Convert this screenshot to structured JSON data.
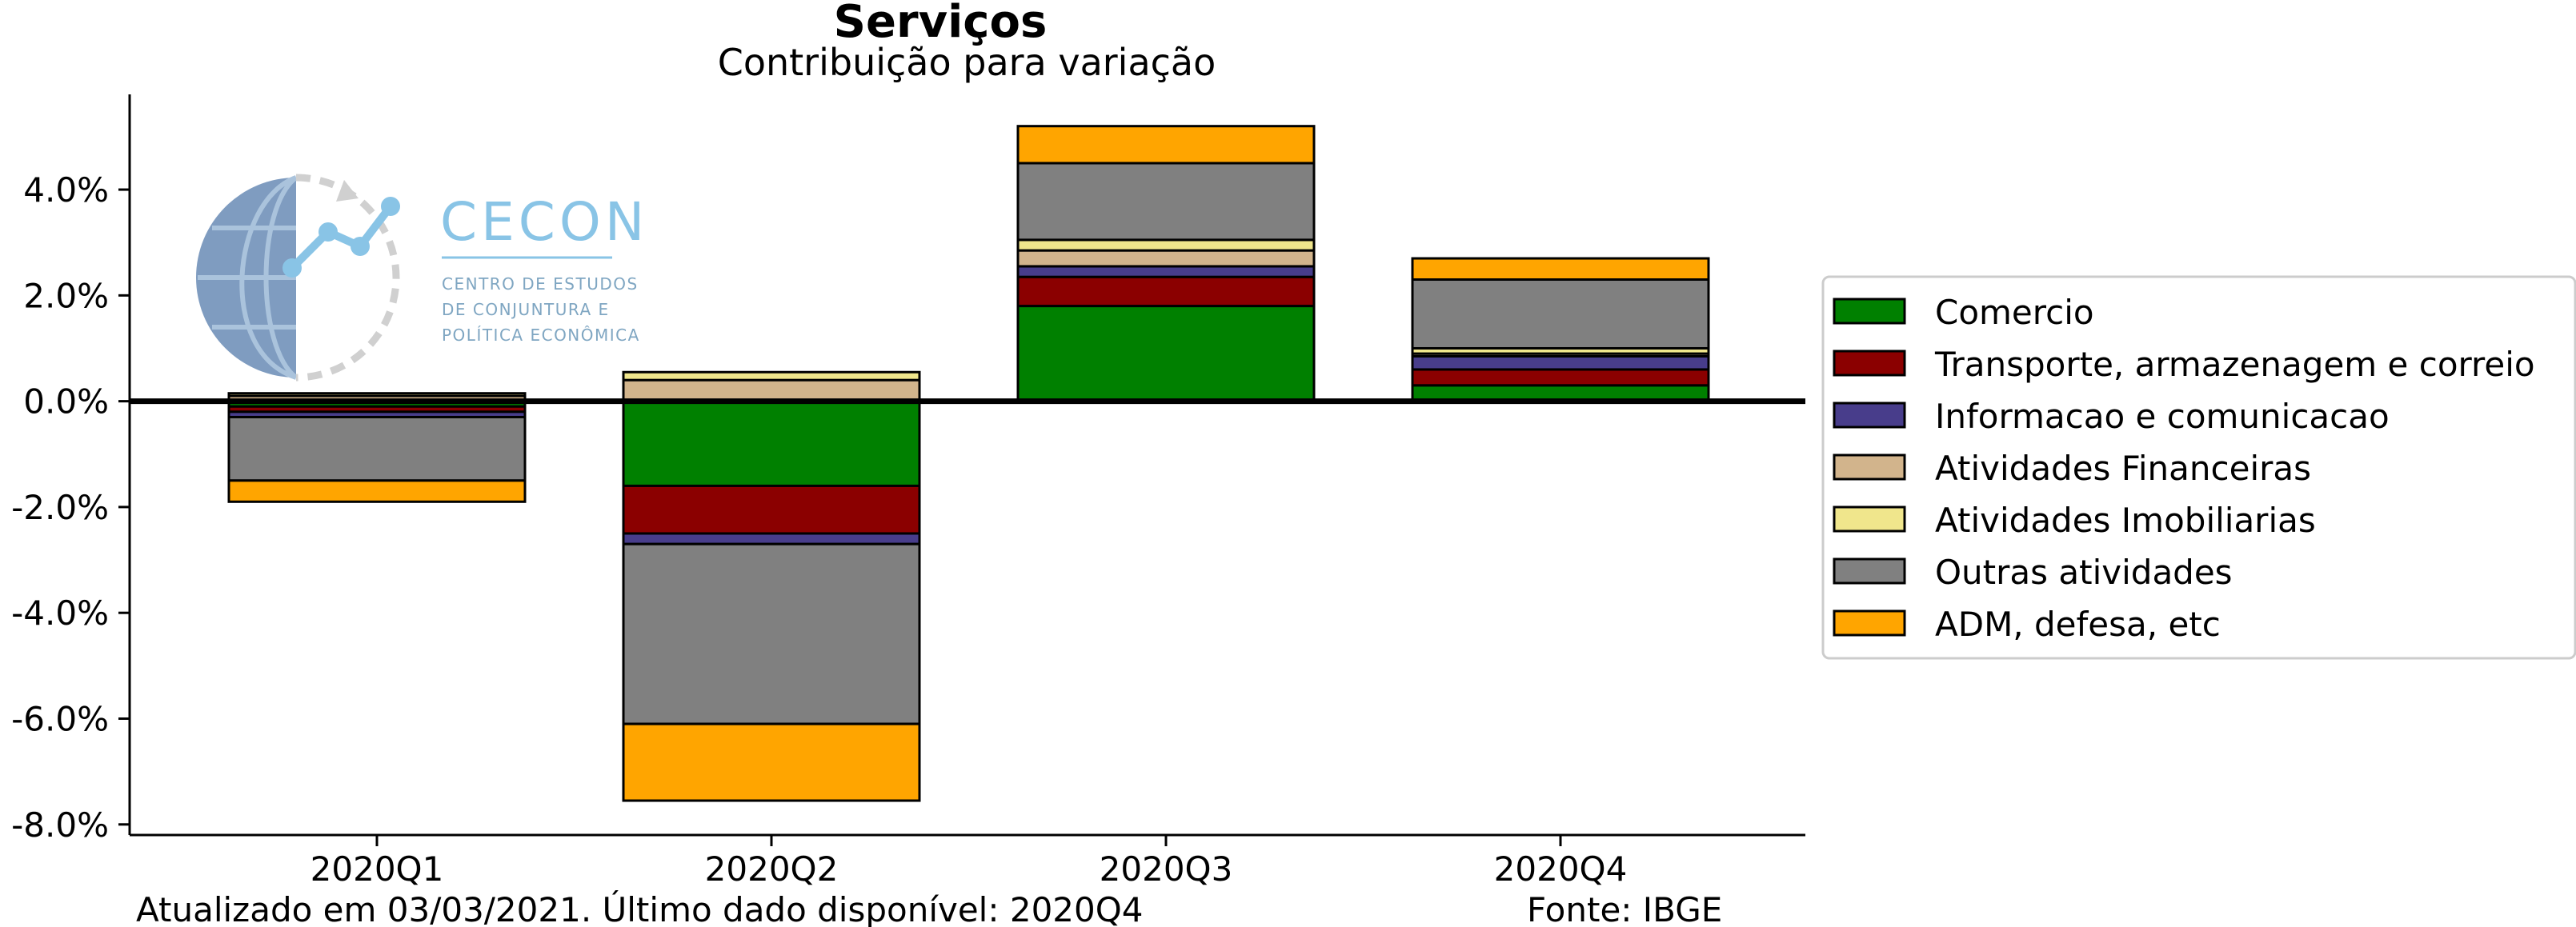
{
  "colors": {
    "Comercio": "#008000",
    "Transporte, armazenagem e correio": "#8b0000",
    "Informacao e comunicacao": "#483d8b",
    "Atividades Financeiras": "#d2b48c",
    "Atividades Imobiliarias": "#f0e68c",
    "Outras atividades": "#808080",
    "ADM, defesa, etc": "#ffa500",
    "logo": "#89c4e6",
    "logo_dark": "#7f9cc0"
  },
  "logo": {
    "name": "CECON",
    "line1": "CENTRO DE ESTUDOS",
    "line2": "DE CONJUNTURA E",
    "line3": "POLÍTICA ECONÔMICA"
  },
  "footer": {
    "updated": "Atualizado em 03/03/2021. Último dado disponível: 2020Q4",
    "source": "Fonte: IBGE"
  },
  "chart_data": {
    "type": "bar",
    "stacked": true,
    "title": "Serviços",
    "subtitle": "Contribuição para variação",
    "categories": [
      "2020Q1",
      "2020Q2",
      "2020Q3",
      "2020Q4"
    ],
    "series": [
      {
        "name": "Comercio",
        "values": [
          -0.1,
          -1.6,
          1.8,
          0.3
        ]
      },
      {
        "name": "Transporte, armazenagem e correio",
        "values": [
          -0.1,
          -0.9,
          0.55,
          0.3
        ]
      },
      {
        "name": "Informacao e comunicacao",
        "values": [
          -0.1,
          -0.2,
          0.2,
          0.25
        ]
      },
      {
        "name": "Atividades Financeiras",
        "values": [
          0.1,
          0.4,
          0.3,
          0.05
        ]
      },
      {
        "name": "Atividades Imobiliarias",
        "values": [
          0.05,
          0.15,
          0.2,
          0.1
        ]
      },
      {
        "name": "Outras atividades",
        "values": [
          -1.2,
          -3.4,
          1.45,
          1.3
        ]
      },
      {
        "name": "ADM, defesa, etc",
        "values": [
          -0.4,
          -1.45,
          0.7,
          0.4
        ]
      }
    ],
    "ylim": [
      -8.2,
      5.8
    ],
    "yticks": [
      -8.0,
      -6.0,
      -4.0,
      -2.0,
      0.0,
      2.0,
      4.0
    ],
    "ytick_labels": [
      "-8.0%",
      "-6.0%",
      "-4.0%",
      "-2.0%",
      "0.0%",
      "2.0%",
      "4.0%"
    ],
    "xlabel": "",
    "ylabel": "",
    "grid": false,
    "legend_position": "right"
  }
}
